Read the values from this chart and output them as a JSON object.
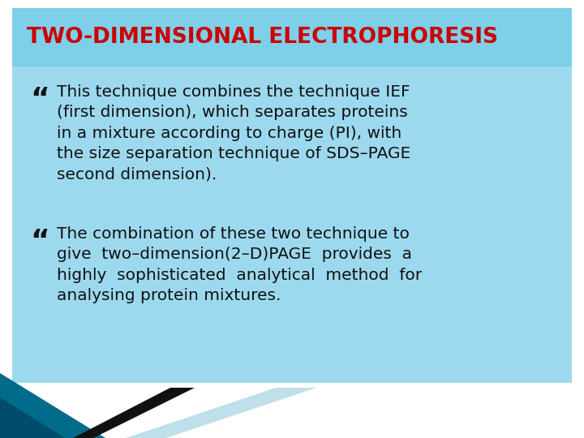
{
  "title": "TWO-DIMENSIONAL ELECTROPHORESIS",
  "title_color": "#CC0000",
  "title_bg_color": "#7ECFE8",
  "body_bg_color": "#9DD9EE",
  "text_color": "#111111",
  "body_fontsize": 14.5,
  "title_fontsize": 19,
  "bullet1_text": "This technique combines the technique IEF\n(first dimension), which separates proteins\nin a mixture according to charge (PI), with\nthe size separation technique of SDS–PAGE\nsecond dimension).",
  "bullet2_text": "The combination of these two technique to\ngive  two–dimension(2–D)PAGE  provides  a\nhighly  sophisticated  analytical  method  for\nanalysing protein mixtures.",
  "deco_teal": "#006B8A",
  "deco_dark_teal": "#004D6B",
  "deco_black": "#111111",
  "deco_lightblue": "#B8DCE8",
  "white": "#FFFFFF"
}
